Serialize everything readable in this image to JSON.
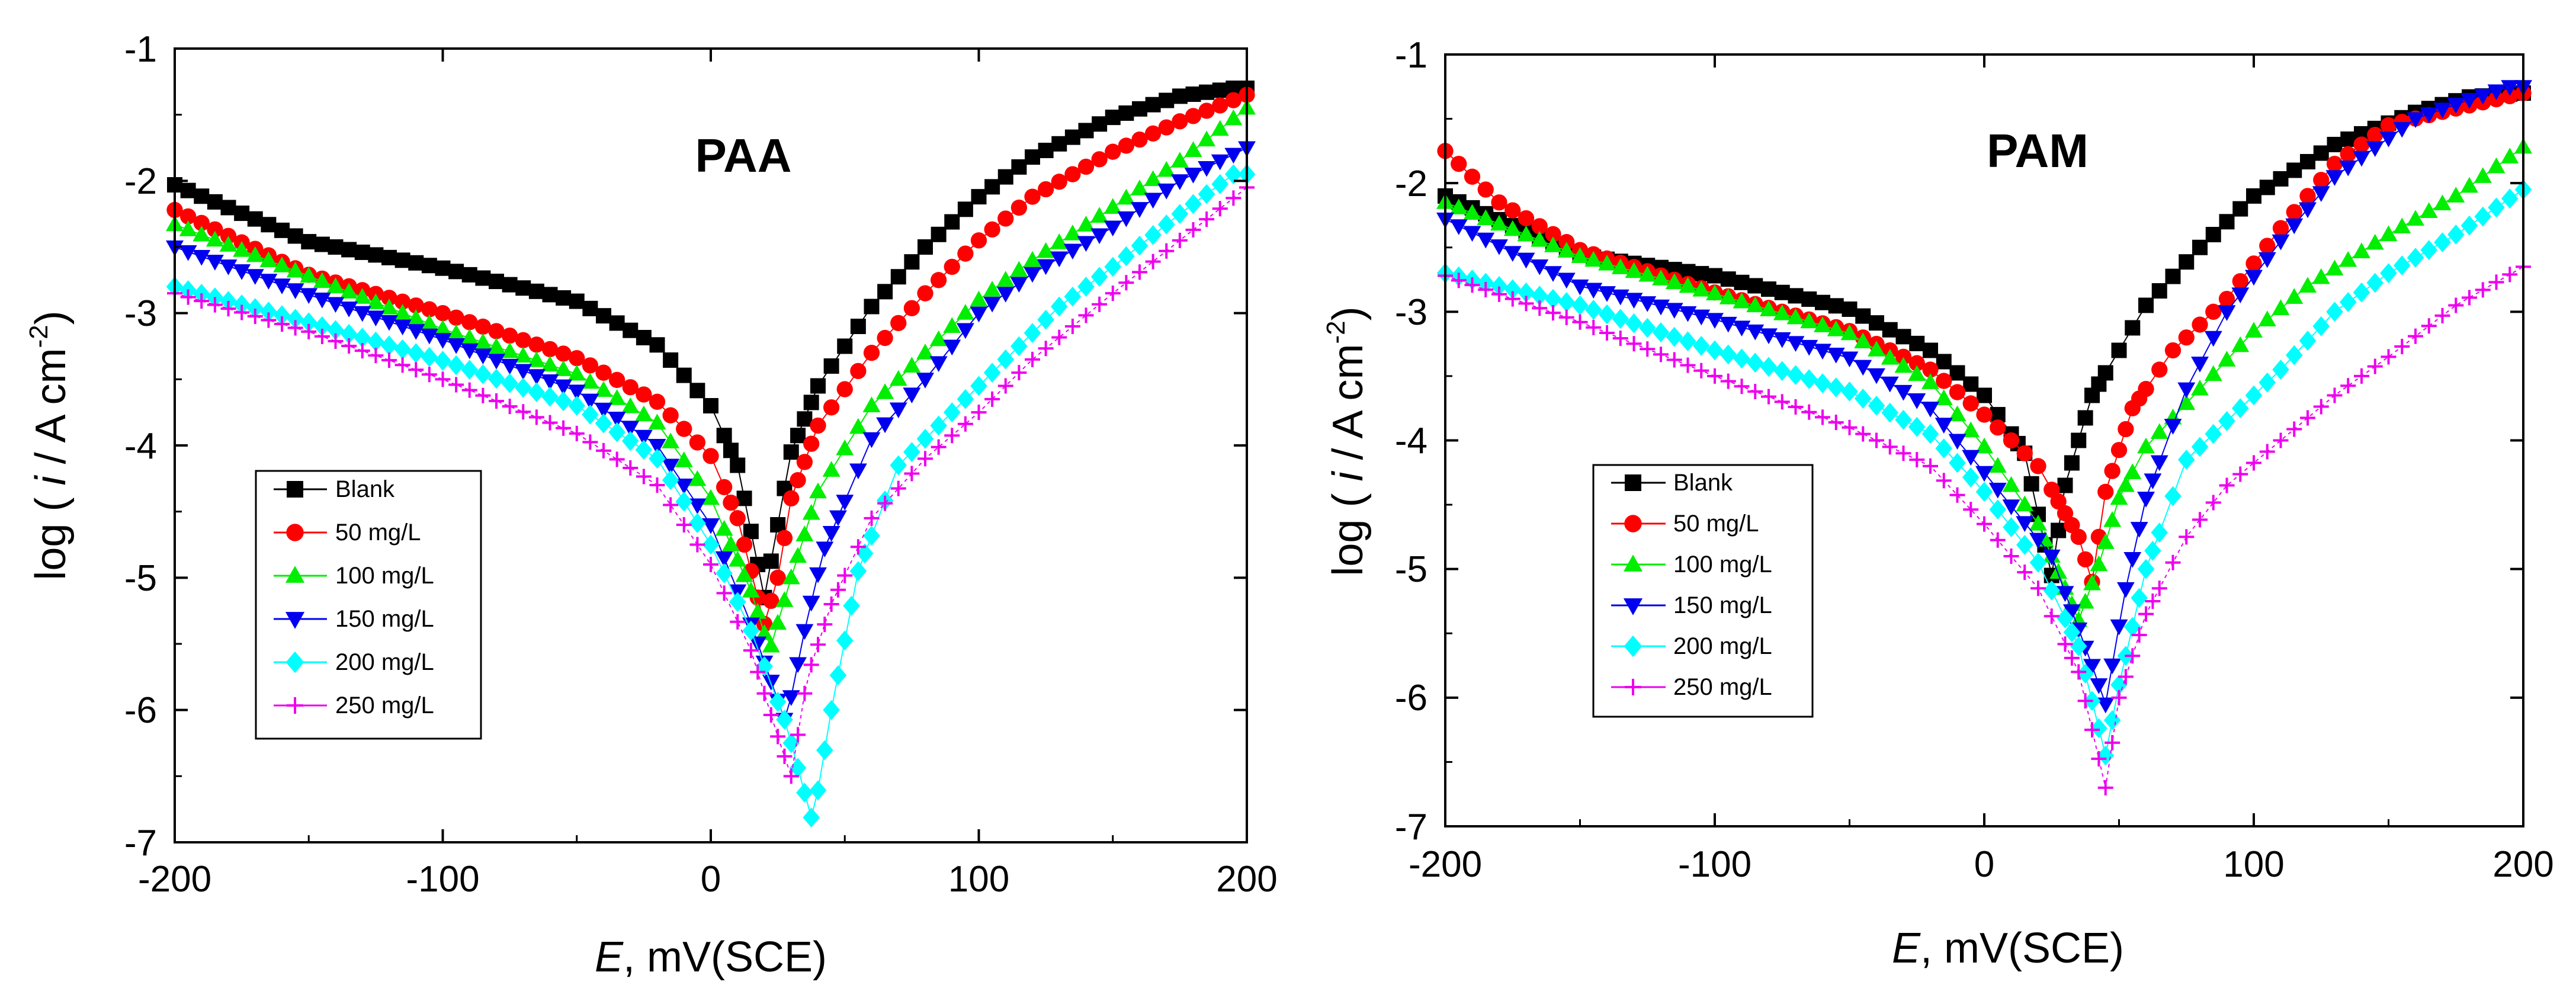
{
  "chart_data": [
    {
      "type": "scatter",
      "title": "PAA",
      "xlabel_italic": "E",
      "xlabel_rest": ", mV(SCE)",
      "ylabel_pre": "log ( ",
      "ylabel_italic": "i",
      "ylabel_post": " / A cm",
      "ylabel_sup": "-2",
      "ylabel_close": ")",
      "xlim": [
        -200,
        200
      ],
      "ylim": [
        -7,
        -1
      ],
      "xticks": [
        "-200",
        "-100",
        "0",
        "100",
        "200"
      ],
      "yticks": [
        "-1",
        "-2",
        "-3",
        "-4",
        "-5",
        "-6",
        "-7"
      ],
      "grid": false,
      "legend_position": "lower-left",
      "series": [
        {
          "name": "Blank",
          "color": "#000000",
          "marker": "square",
          "ecorr": 20,
          "curve": [
            [
              -200,
              -2.03
            ],
            [
              -150,
              -2.46
            ],
            [
              -100,
              -2.66
            ],
            [
              -50,
              -2.91
            ],
            [
              -20,
              -3.24
            ],
            [
              0,
              -3.7
            ],
            [
              10,
              -4.15
            ],
            [
              20,
              -5.15
            ],
            [
              25,
              -4.6
            ],
            [
              30,
              -4.05
            ],
            [
              40,
              -3.55
            ],
            [
              60,
              -2.95
            ],
            [
              80,
              -2.5
            ],
            [
              100,
              -2.12
            ],
            [
              120,
              -1.82
            ],
            [
              150,
              -1.52
            ],
            [
              175,
              -1.36
            ],
            [
              195,
              -1.3
            ]
          ]
        },
        {
          "name": "50 mg/L",
          "color": "#ff0000",
          "marker": "circle",
          "ecorr": 20,
          "curve": [
            [
              -200,
              -2.22
            ],
            [
              -150,
              -2.71
            ],
            [
              -100,
              -3.0
            ],
            [
              -50,
              -3.34
            ],
            [
              -20,
              -3.67
            ],
            [
              0,
              -4.08
            ],
            [
              10,
              -4.55
            ],
            [
              20,
              -5.35
            ],
            [
              25,
              -5.0
            ],
            [
              30,
              -4.4
            ],
            [
              40,
              -3.85
            ],
            [
              60,
              -3.3
            ],
            [
              80,
              -2.85
            ],
            [
              100,
              -2.45
            ],
            [
              120,
              -2.12
            ],
            [
              150,
              -1.78
            ],
            [
              175,
              -1.55
            ],
            [
              200,
              -1.35
            ]
          ]
        },
        {
          "name": "100 mg/L",
          "color": "#00ee00",
          "marker": "triangle-up",
          "ecorr": 22,
          "curve": [
            [
              -200,
              -2.33
            ],
            [
              -150,
              -2.72
            ],
            [
              -100,
              -3.12
            ],
            [
              -50,
              -3.46
            ],
            [
              -20,
              -3.83
            ],
            [
              0,
              -4.4
            ],
            [
              15,
              -5.1
            ],
            [
              22,
              -5.55
            ],
            [
              30,
              -5.0
            ],
            [
              40,
              -4.35
            ],
            [
              60,
              -3.7
            ],
            [
              80,
              -3.3
            ],
            [
              100,
              -2.9
            ],
            [
              120,
              -2.6
            ],
            [
              150,
              -2.2
            ],
            [
              175,
              -1.85
            ],
            [
              200,
              -1.45
            ]
          ]
        },
        {
          "name": "150 mg/L",
          "color": "#0000ee",
          "marker": "triangle-down",
          "ecorr": 28,
          "curve": [
            [
              -200,
              -2.5
            ],
            [
              -150,
              -2.86
            ],
            [
              -100,
              -3.2
            ],
            [
              -50,
              -3.59
            ],
            [
              -20,
              -4.0
            ],
            [
              0,
              -4.6
            ],
            [
              15,
              -5.35
            ],
            [
              28,
              -6.1
            ],
            [
              35,
              -5.4
            ],
            [
              42,
              -4.8
            ],
            [
              60,
              -3.95
            ],
            [
              80,
              -3.5
            ],
            [
              100,
              -3.0
            ],
            [
              120,
              -2.7
            ],
            [
              150,
              -2.35
            ],
            [
              175,
              -2.0
            ],
            [
              200,
              -1.75
            ]
          ]
        },
        {
          "name": "200 mg/L",
          "color": "#00ffff",
          "marker": "diamond",
          "ecorr": 38,
          "curve": [
            [
              -200,
              -2.8
            ],
            [
              -150,
              -3.07
            ],
            [
              -100,
              -3.36
            ],
            [
              -50,
              -3.7
            ],
            [
              -20,
              -4.1
            ],
            [
              0,
              -4.75
            ],
            [
              15,
              -5.4
            ],
            [
              28,
              -6.1
            ],
            [
              38,
              -6.85
            ],
            [
              45,
              -6.0
            ],
            [
              55,
              -4.95
            ],
            [
              70,
              -4.15
            ],
            [
              90,
              -3.75
            ],
            [
              110,
              -3.35
            ],
            [
              130,
              -2.95
            ],
            [
              150,
              -2.65
            ],
            [
              175,
              -2.25
            ],
            [
              195,
              -1.95
            ]
          ]
        },
        {
          "name": "250 mg/L",
          "color": "#ee00ee",
          "marker": "plus",
          "ecorr": 30,
          "curve": [
            [
              -200,
              -2.85
            ],
            [
              -150,
              -3.14
            ],
            [
              -100,
              -3.5
            ],
            [
              -50,
              -3.91
            ],
            [
              -20,
              -4.3
            ],
            [
              0,
              -4.9
            ],
            [
              15,
              -5.55
            ],
            [
              25,
              -6.2
            ],
            [
              30,
              -6.5
            ],
            [
              36,
              -5.75
            ],
            [
              45,
              -5.2
            ],
            [
              60,
              -4.55
            ],
            [
              80,
              -4.1
            ],
            [
              100,
              -3.75
            ],
            [
              120,
              -3.35
            ],
            [
              150,
              -2.85
            ],
            [
              175,
              -2.45
            ],
            [
              200,
              -2.05
            ]
          ]
        }
      ]
    },
    {
      "type": "scatter",
      "title": "PAM",
      "xlabel_italic": "E",
      "xlabel_rest": ", mV(SCE)",
      "ylabel_pre": "log ( ",
      "ylabel_italic": "i",
      "ylabel_post": " / A cm",
      "ylabel_sup": "-2",
      "ylabel_close": ")",
      "xlim": [
        -200,
        200
      ],
      "ylim": [
        -7,
        -1
      ],
      "xticks": [
        "-200",
        "-100",
        "0",
        "100",
        "200"
      ],
      "yticks": [
        "-1",
        "-2",
        "-3",
        "-4",
        "-5",
        "-6",
        "-7"
      ],
      "grid": false,
      "legend_position": "lower-left",
      "series": [
        {
          "name": "Blank",
          "color": "#000000",
          "marker": "square",
          "ecorr": 25,
          "curve": [
            [
              -200,
              -2.1
            ],
            [
              -150,
              -2.56
            ],
            [
              -100,
              -2.72
            ],
            [
              -50,
              -2.98
            ],
            [
              -20,
              -3.3
            ],
            [
              0,
              -3.65
            ],
            [
              15,
              -4.1
            ],
            [
              25,
              -5.05
            ],
            [
              30,
              -4.35
            ],
            [
              40,
              -3.65
            ],
            [
              60,
              -2.95
            ],
            [
              80,
              -2.5
            ],
            [
              100,
              -2.1
            ],
            [
              130,
              -1.7
            ],
            [
              160,
              -1.45
            ],
            [
              180,
              -1.33
            ],
            [
              200,
              -1.3
            ]
          ]
        },
        {
          "name": "50 mg/L",
          "color": "#ff0000",
          "marker": "circle",
          "ecorr": 40,
          "curve": [
            [
              -200,
              -1.75
            ],
            [
              -180,
              -2.15
            ],
            [
              -150,
              -2.52
            ],
            [
              -100,
              -2.85
            ],
            [
              -50,
              -3.15
            ],
            [
              -20,
              -3.45
            ],
            [
              0,
              -3.8
            ],
            [
              20,
              -4.2
            ],
            [
              35,
              -4.75
            ],
            [
              40,
              -5.1
            ],
            [
              45,
              -4.4
            ],
            [
              55,
              -3.75
            ],
            [
              70,
              -3.3
            ],
            [
              90,
              -2.9
            ],
            [
              110,
              -2.35
            ],
            [
              130,
              -1.85
            ],
            [
              150,
              -1.55
            ],
            [
              175,
              -1.42
            ],
            [
              200,
              -1.3
            ]
          ]
        },
        {
          "name": "100 mg/L",
          "color": "#00ee00",
          "marker": "triangle-up",
          "ecorr": 35,
          "curve": [
            [
              -200,
              -2.15
            ],
            [
              -150,
              -2.57
            ],
            [
              -100,
              -2.86
            ],
            [
              -50,
              -3.17
            ],
            [
              -20,
              -3.55
            ],
            [
              0,
              -4.05
            ],
            [
              20,
              -4.65
            ],
            [
              35,
              -5.4
            ],
            [
              42,
              -5.0
            ],
            [
              50,
              -4.45
            ],
            [
              60,
              -4.05
            ],
            [
              80,
              -3.6
            ],
            [
              100,
              -3.15
            ],
            [
              120,
              -2.8
            ],
            [
              150,
              -2.4
            ],
            [
              175,
              -2.1
            ],
            [
              200,
              -1.72
            ]
          ]
        },
        {
          "name": "150 mg/L",
          "color": "#0000ee",
          "marker": "triangle-down",
          "ecorr": 45,
          "curve": [
            [
              -200,
              -2.28
            ],
            [
              -150,
              -2.8
            ],
            [
              -100,
              -3.06
            ],
            [
              -50,
              -3.36
            ],
            [
              -20,
              -3.75
            ],
            [
              0,
              -4.25
            ],
            [
              25,
              -4.9
            ],
            [
              40,
              -5.75
            ],
            [
              45,
              -6.05
            ],
            [
              52,
              -5.2
            ],
            [
              60,
              -4.45
            ],
            [
              75,
              -3.6
            ],
            [
              90,
              -3.0
            ],
            [
              110,
              -2.45
            ],
            [
              130,
              -1.95
            ],
            [
              160,
              -1.5
            ],
            [
              180,
              -1.35
            ],
            [
              195,
              -1.25
            ]
          ]
        },
        {
          "name": "200 mg/L",
          "color": "#00ffff",
          "marker": "diamond",
          "ecorr": 45,
          "curve": [
            [
              -200,
              -2.7
            ],
            [
              -150,
              -2.95
            ],
            [
              -100,
              -3.3
            ],
            [
              -50,
              -3.62
            ],
            [
              -20,
              -3.95
            ],
            [
              0,
              -4.4
            ],
            [
              20,
              -4.95
            ],
            [
              35,
              -5.6
            ],
            [
              45,
              -6.45
            ],
            [
              50,
              -5.9
            ],
            [
              60,
              -5.0
            ],
            [
              75,
              -4.15
            ],
            [
              90,
              -3.85
            ],
            [
              110,
              -3.45
            ],
            [
              130,
              -3.0
            ],
            [
              150,
              -2.7
            ],
            [
              175,
              -2.4
            ],
            [
              200,
              -2.05
            ]
          ]
        },
        {
          "name": "250 mg/L",
          "color": "#ee00ee",
          "marker": "plus",
          "ecorr": 45,
          "curve": [
            [
              -200,
              -2.72
            ],
            [
              -150,
              -3.08
            ],
            [
              -100,
              -3.5
            ],
            [
              -50,
              -3.9
            ],
            [
              -20,
              -4.2
            ],
            [
              0,
              -4.65
            ],
            [
              20,
              -5.15
            ],
            [
              35,
              -5.8
            ],
            [
              45,
              -6.7
            ],
            [
              50,
              -6.0
            ],
            [
              60,
              -5.35
            ],
            [
              75,
              -4.75
            ],
            [
              90,
              -4.35
            ],
            [
              110,
              -4.0
            ],
            [
              130,
              -3.65
            ],
            [
              150,
              -3.35
            ],
            [
              175,
              -2.95
            ],
            [
              200,
              -2.65
            ]
          ]
        }
      ]
    }
  ]
}
